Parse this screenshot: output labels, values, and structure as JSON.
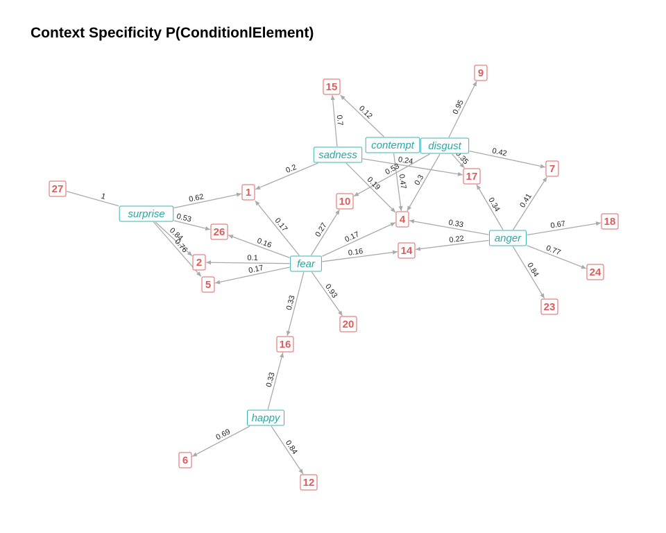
{
  "title": "Context Specificity P(ConditionlElement)",
  "colors": {
    "condition": "#2aa7a7",
    "element": "#e05a5a",
    "edge": "#aaaaaa"
  },
  "conditions": [
    "surprise",
    "sadness",
    "contempt",
    "disgust",
    "fear",
    "anger",
    "happy"
  ],
  "elements": [
    "1",
    "2",
    "4",
    "5",
    "6",
    "7",
    "9",
    "10",
    "12",
    "14",
    "15",
    "16",
    "17",
    "18",
    "20",
    "23",
    "24",
    "26",
    "27"
  ],
  "edges": [
    {
      "from": "27",
      "to": "surprise",
      "label": "1"
    },
    {
      "from": "surprise",
      "to": "1",
      "label": "0.62"
    },
    {
      "from": "surprise",
      "to": "26",
      "label": "0.53"
    },
    {
      "from": "surprise",
      "to": "2",
      "label": "0.84"
    },
    {
      "from": "surprise",
      "to": "5",
      "label": "0.76"
    },
    {
      "from": "sadness",
      "to": "1",
      "label": "0.2"
    },
    {
      "from": "sadness",
      "to": "15",
      "label": "0.7"
    },
    {
      "from": "sadness",
      "to": "4",
      "label": "0.19"
    },
    {
      "from": "sadness",
      "to": "17",
      "label": "0.24"
    },
    {
      "from": "contempt",
      "to": "15",
      "label": "0.12"
    },
    {
      "from": "contempt",
      "to": "4",
      "label": "0.47"
    },
    {
      "from": "disgust",
      "to": "9",
      "label": "0.95"
    },
    {
      "from": "disgust",
      "to": "7",
      "label": "0.42"
    },
    {
      "from": "disgust",
      "to": "17",
      "label": "0.35"
    },
    {
      "from": "disgust",
      "to": "4",
      "label": "0.3"
    },
    {
      "from": "disgust",
      "to": "10",
      "label": "0.53"
    },
    {
      "from": "fear",
      "to": "1",
      "label": "0.17"
    },
    {
      "from": "fear",
      "to": "26",
      "label": "0.16"
    },
    {
      "from": "fear",
      "to": "2",
      "label": "0.1"
    },
    {
      "from": "fear",
      "to": "5",
      "label": "0.17"
    },
    {
      "from": "fear",
      "to": "10",
      "label": "0.27"
    },
    {
      "from": "fear",
      "to": "4",
      "label": "0.17"
    },
    {
      "from": "fear",
      "to": "14",
      "label": "0.16"
    },
    {
      "from": "fear",
      "to": "20",
      "label": "0.93"
    },
    {
      "from": "fear",
      "to": "16",
      "label": "0.33"
    },
    {
      "from": "anger",
      "to": "4",
      "label": "0.33"
    },
    {
      "from": "anger",
      "to": "14",
      "label": "0.22"
    },
    {
      "from": "anger",
      "to": "17",
      "label": "0.34"
    },
    {
      "from": "anger",
      "to": "7",
      "label": "0.41"
    },
    {
      "from": "anger",
      "to": "18",
      "label": "0.67"
    },
    {
      "from": "anger",
      "to": "24",
      "label": "0.77"
    },
    {
      "from": "anger",
      "to": "23",
      "label": "0.84"
    },
    {
      "from": "happy",
      "to": "16",
      "label": "0.33"
    },
    {
      "from": "happy",
      "to": "6",
      "label": "0.69"
    },
    {
      "from": "happy",
      "to": "12",
      "label": "0.84"
    }
  ]
}
